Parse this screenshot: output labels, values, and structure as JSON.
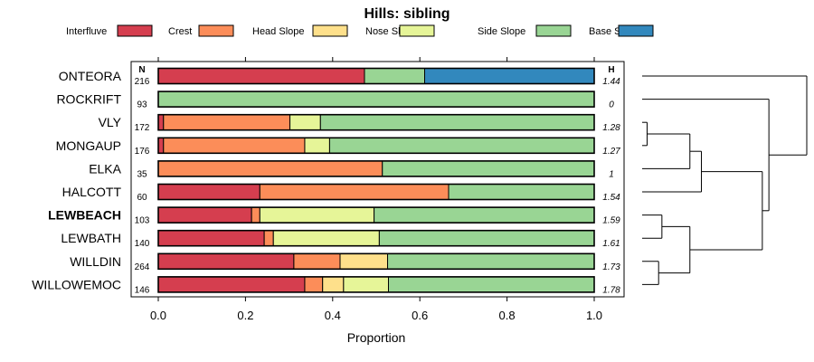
{
  "chart_data": {
    "type": "bar",
    "stacked": true,
    "orientation": "horizontal",
    "title": "Hills: sibling",
    "xlabel": "Proportion",
    "xlim": [
      0,
      1
    ],
    "xticks": [
      "0.0",
      "0.2",
      "0.4",
      "0.6",
      "0.8",
      "1.0"
    ],
    "xtick_values": [
      0,
      0.2,
      0.4,
      0.6,
      0.8,
      1.0
    ],
    "n_header": "N",
    "h_header": "H",
    "legend_position": "top",
    "series": [
      {
        "name": "Interfluve",
        "color": "#d53e4f"
      },
      {
        "name": "Crest",
        "color": "#fc8d59"
      },
      {
        "name": "Head Slope",
        "color": "#fee08b"
      },
      {
        "name": "Nose Slope",
        "color": "#e6f598"
      },
      {
        "name": "Side Slope",
        "color": "#99d594"
      },
      {
        "name": "Base Slope",
        "color": "#3288bd"
      }
    ],
    "rows": [
      {
        "label": "ONTEORA",
        "n": "216",
        "h": "1.44",
        "bold": false,
        "values": [
          0.473,
          0,
          0,
          0,
          0.138,
          0.389
        ]
      },
      {
        "label": "ROCKRIFT",
        "n": "93",
        "h": "0",
        "bold": false,
        "values": [
          0,
          0,
          0,
          0,
          1.0,
          0
        ]
      },
      {
        "label": "VLY",
        "n": "172",
        "h": "1.28",
        "bold": false,
        "values": [
          0.012,
          0.29,
          0,
          0.07,
          0.628,
          0
        ]
      },
      {
        "label": "MONGAUP",
        "n": "176",
        "h": "1.27",
        "bold": false,
        "values": [
          0.012,
          0.324,
          0,
          0.057,
          0.607,
          0
        ]
      },
      {
        "label": "ELKA",
        "n": "35",
        "h": "1",
        "bold": false,
        "values": [
          0,
          0.514,
          0,
          0,
          0.486,
          0
        ]
      },
      {
        "label": "HALCOTT",
        "n": "60",
        "h": "1.54",
        "bold": false,
        "values": [
          0.233,
          0.433,
          0,
          0,
          0.334,
          0
        ]
      },
      {
        "label": "LEWBEACH",
        "n": "103",
        "h": "1.59",
        "bold": true,
        "values": [
          0.214,
          0.019,
          0,
          0.262,
          0.505,
          0
        ]
      },
      {
        "label": "LEWBATH",
        "n": "140",
        "h": "1.61",
        "bold": false,
        "values": [
          0.243,
          0.021,
          0,
          0.243,
          0.493,
          0
        ]
      },
      {
        "label": "WILLDIN",
        "n": "264",
        "h": "1.73",
        "bold": false,
        "values": [
          0.311,
          0.106,
          0.109,
          0,
          0.474,
          0
        ]
      },
      {
        "label": "WILLOWEMOC",
        "n": "146",
        "h": "1.78",
        "bold": false,
        "values": [
          0.336,
          0.041,
          0.048,
          0.103,
          0.472,
          0
        ]
      }
    ],
    "dendrogram": {
      "merges": [
        {
          "a": "VLY",
          "b": "MONGAUP",
          "height": 0.03
        },
        {
          "a": "WILLDIN",
          "b": "WILLOWEMOC",
          "height": 0.1
        },
        {
          "a": "LEWBEACH",
          "b": "LEWBATH",
          "height": 0.12
        },
        {
          "a": "c0",
          "b": "ELKA",
          "height": 0.29
        },
        {
          "a": "c2",
          "b": "c1",
          "height": 0.29
        },
        {
          "a": "c3",
          "b": "HALCOTT",
          "height": 0.36
        },
        {
          "a": "c5",
          "b": "c4",
          "height": 0.73
        },
        {
          "a": "ROCKRIFT",
          "b": "c6",
          "height": 0.77
        },
        {
          "a": "ONTEORA",
          "b": "c7",
          "height": 1.0
        }
      ]
    }
  }
}
